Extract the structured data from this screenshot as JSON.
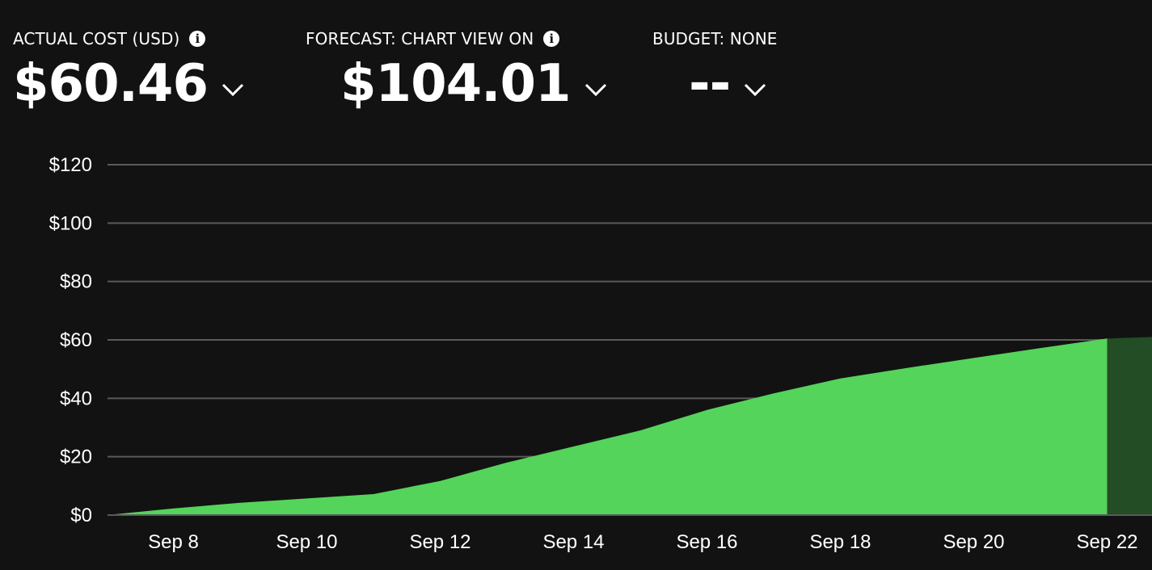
{
  "kpis": {
    "actual": {
      "label": "ACTUAL COST (USD)",
      "value": "$60.46"
    },
    "forecast": {
      "label": "FORECAST: CHART VIEW ON",
      "value": "$104.01"
    },
    "budget": {
      "label": "BUDGET: NONE",
      "value": "--"
    }
  },
  "icons": {
    "info": "info-icon",
    "dropdown": "chevron-down-icon"
  },
  "chart_data": {
    "type": "area",
    "title": "",
    "xlabel": "",
    "ylabel": "",
    "x_ticks": [
      "Sep 8",
      "Sep 10",
      "Sep 12",
      "Sep 14",
      "Sep 16",
      "Sep 18",
      "Sep 20",
      "Sep 22"
    ],
    "y_ticks": [
      "$0",
      "$20",
      "$40",
      "$60",
      "$80",
      "$100",
      "$120"
    ],
    "ylim": [
      0,
      120
    ],
    "xlim": [
      "Sep 7",
      "Sep 22"
    ],
    "grid": true,
    "series": [
      {
        "type": "actual",
        "color": "#54d45a",
        "x": [
          "Sep 7",
          "Sep 8",
          "Sep 9",
          "Sep 10",
          "Sep 11",
          "Sep 12",
          "Sep 13",
          "Sep 14",
          "Sep 15",
          "Sep 16",
          "Sep 17",
          "Sep 18",
          "Sep 19",
          "Sep 20",
          "Sep 21",
          "Sep 22"
        ],
        "values": [
          0,
          2.3,
          4.2,
          5.7,
          7.2,
          11.7,
          18.0,
          23.5,
          29.0,
          36.0,
          41.7,
          46.8,
          50.4,
          53.8,
          57.2,
          60.46
        ]
      },
      {
        "type": "forecast",
        "color": "#234d25",
        "x": [
          "Sep 22"
        ],
        "values": [
          60.46
        ]
      }
    ]
  }
}
